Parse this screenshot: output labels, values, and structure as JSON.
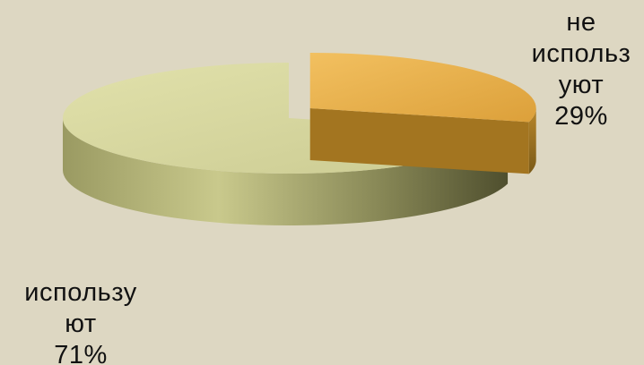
{
  "chart_data": {
    "type": "pie",
    "style": "3d-exploded",
    "title": "",
    "legend": "none",
    "slices": [
      {
        "label": "используют",
        "label_lines": [
          "использу",
          "ют"
        ],
        "value": 71,
        "value_label": "71%",
        "color": "#cfcf96",
        "explode": false
      },
      {
        "label": "не используют",
        "label_lines": [
          "не",
          "использ",
          "уют"
        ],
        "value": 29,
        "value_label": "29%",
        "color": "#e9b14b",
        "explode": true
      }
    ]
  }
}
